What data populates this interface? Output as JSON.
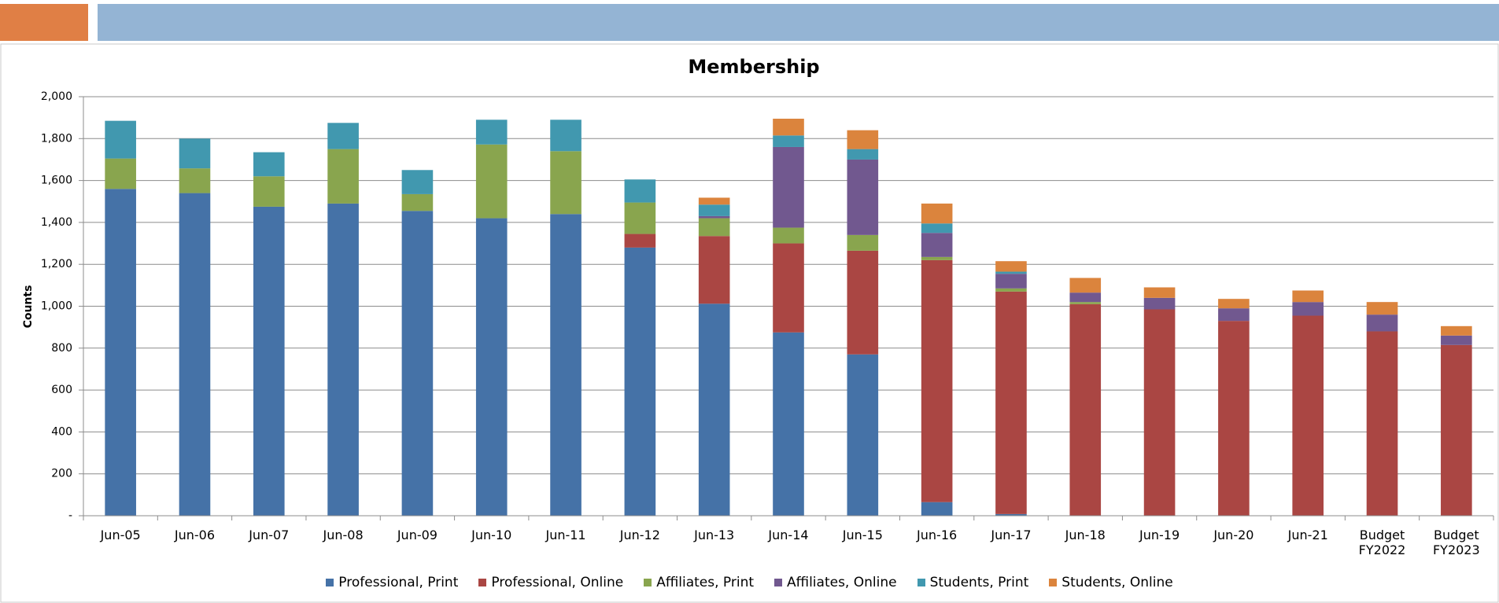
{
  "chart_data": {
    "type": "stacked-bar",
    "title": "Membership",
    "y_label": "Counts",
    "categories": [
      "Jun-05",
      "Jun-06",
      "Jun-07",
      "Jun-08",
      "Jun-09",
      "Jun-10",
      "Jun-11",
      "Jun-12",
      "Jun-13",
      "Jun-14",
      "Jun-15",
      "Jun-16",
      "Jun-17",
      "Jun-18",
      "Jun-19",
      "Jun-20",
      "Jun-21",
      "Budget FY2022",
      "Budget FY2023"
    ],
    "series": [
      {
        "name": "Professional, Print",
        "color": "#4572a7",
        "values": [
          1560,
          1540,
          1475,
          1490,
          1455,
          1420,
          1440,
          1280,
          1012,
          875,
          770,
          65,
          8,
          0,
          0,
          0,
          0,
          0,
          0
        ]
      },
      {
        "name": "Professional, Online",
        "color": "#aa4643",
        "values": [
          0,
          0,
          0,
          0,
          0,
          0,
          0,
          65,
          323,
          425,
          495,
          1155,
          1062,
          1010,
          985,
          930,
          955,
          880,
          815
        ]
      },
      {
        "name": "Affiliates, Print",
        "color": "#89a54e",
        "values": [
          145,
          118,
          145,
          260,
          80,
          352,
          300,
          150,
          85,
          75,
          75,
          15,
          15,
          10,
          0,
          0,
          0,
          0,
          0
        ]
      },
      {
        "name": "Affiliates, Online",
        "color": "#71588f",
        "values": [
          0,
          0,
          0,
          0,
          0,
          0,
          0,
          0,
          10,
          385,
          360,
          115,
          70,
          45,
          55,
          60,
          65,
          80,
          45
        ]
      },
      {
        "name": "Students, Print",
        "color": "#4198af",
        "values": [
          180,
          142,
          115,
          125,
          115,
          118,
          150,
          110,
          55,
          55,
          50,
          45,
          10,
          0,
          0,
          0,
          0,
          0,
          0
        ]
      },
      {
        "name": "Students, Online",
        "color": "#db843d",
        "values": [
          0,
          0,
          0,
          0,
          0,
          0,
          0,
          0,
          33,
          80,
          90,
          95,
          50,
          70,
          50,
          45,
          55,
          60,
          45
        ]
      }
    ],
    "ylim": [
      0,
      2000
    ],
    "yticks": [
      {
        "value": 0,
        "label": "-"
      },
      200,
      400,
      600,
      800,
      {
        "value": 1000,
        "label": "1,000"
      },
      {
        "value": 1200,
        "label": "1,200"
      },
      {
        "value": 1400,
        "label": "1,400"
      },
      {
        "value": 1600,
        "label": "1,600"
      },
      {
        "value": 1800,
        "label": "1,800"
      },
      {
        "value": 2000,
        "label": "2,000"
      }
    ],
    "grid": true,
    "legend": "bottom"
  }
}
